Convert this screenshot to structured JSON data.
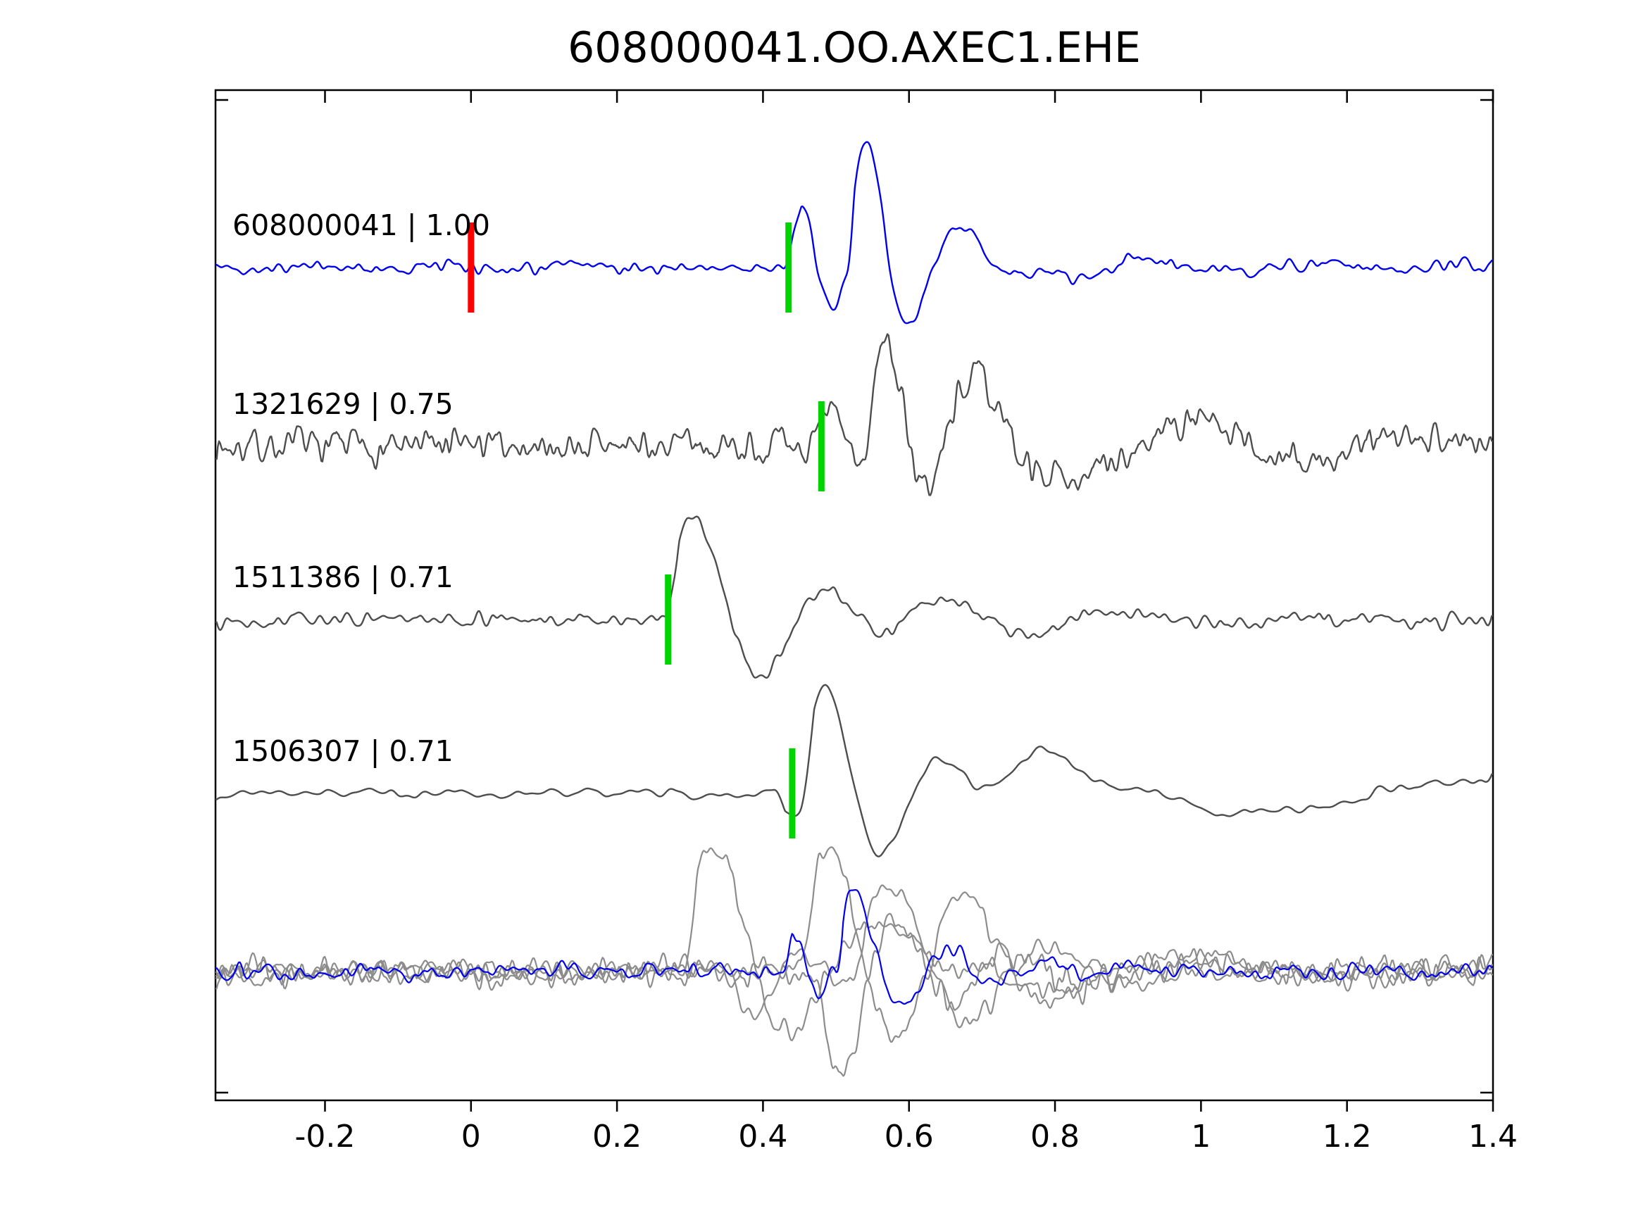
{
  "chart_data": {
    "type": "line",
    "subtype": "seismogram-cross-correlation-stack",
    "title": "608000041.OO.AXEC1.EHE",
    "xlabel": "",
    "ylabel": "",
    "xlim": [
      -0.35,
      1.4
    ],
    "x_ticks": [
      -0.2,
      0,
      0.2,
      0.4,
      0.6,
      0.8,
      1,
      1.2,
      1.4
    ],
    "x_tick_labels": [
      "-0.2",
      "0",
      "0.2",
      "0.4",
      "0.6",
      "0.8",
      "1",
      "1.2",
      "1.4"
    ],
    "grid": false,
    "legend": false,
    "colors": {
      "reference_trace": "#0000ee",
      "match_trace": "#4d4d4d",
      "overlay_gray": "#8c8c8c",
      "pick_red": "#ff0000",
      "pick_green": "#00d400",
      "axis": "#000000"
    },
    "traces": [
      {
        "id": "608000041",
        "correlation": "1.00",
        "label": "608000041 | 1.00",
        "color": "#0000ee",
        "picks": [
          {
            "x": 0.0,
            "color": "#ff0000"
          },
          {
            "x": 0.435,
            "color": "#00d400"
          }
        ],
        "wave": {
          "seed": 42,
          "noise_amp": 16,
          "smooth": 8,
          "events": [
            {
              "t0": 0.428,
              "amp": 115,
              "freq": 11,
              "decay": 0.09,
              "rise": 0.025
            },
            {
              "t0": 0.515,
              "amp": 200,
              "freq": 8,
              "decay": 0.09,
              "rise": 0.01
            },
            {
              "t0": 0.63,
              "amp": 38,
              "freq": 4.2,
              "decay": 0.22,
              "rise": 0.03
            }
          ]
        }
      },
      {
        "id": "1321629",
        "correlation": "0.75",
        "label": "1321629 | 0.75",
        "color": "#4d4d4d",
        "picks": [
          {
            "x": 0.48,
            "color": "#00d400"
          }
        ],
        "wave": {
          "seed": 7,
          "noise_amp": 32,
          "smooth": 3,
          "events": [
            {
              "t0": 0.47,
              "amp": 70,
              "freq": 11,
              "decay": 0.07,
              "rise": 0.02
            },
            {
              "t0": 0.535,
              "amp": 200,
              "freq": 7.5,
              "decay": 0.1,
              "rise": 0.02
            },
            {
              "t0": 0.6,
              "amp": 80,
              "freq": 3.2,
              "decay": 0.45,
              "rise": 0.05
            }
          ]
        }
      },
      {
        "id": "1511386",
        "correlation": "0.71",
        "label": "1511386 | 0.71",
        "color": "#4d4d4d",
        "picks": [
          {
            "x": 0.27,
            "color": "#00d400"
          }
        ],
        "wave": {
          "seed": 13,
          "noise_amp": 15,
          "smooth": 8,
          "events": [
            {
              "t0": 0.265,
              "amp": 200,
              "freq": 5.5,
              "decay": 0.14,
              "rise": 0.02
            },
            {
              "t0": 0.55,
              "amp": 30,
              "freq": 3.5,
              "decay": 0.3,
              "rise": 0.05
            }
          ]
        }
      },
      {
        "id": "1506307",
        "correlation": "0.71",
        "label": "1506307 | 0.71",
        "color": "#4d4d4d",
        "picks": [
          {
            "x": 0.44,
            "color": "#00d400"
          }
        ],
        "wave": {
          "seed": 99,
          "noise_amp": 10,
          "smooth": 20,
          "events": [
            {
              "t0": 0.415,
              "amp": -55,
              "freq": 9,
              "decay": 0.05,
              "rise": 0.015
            },
            {
              "t0": 0.45,
              "amp": 190,
              "freq": 6.5,
              "decay": 0.14,
              "rise": 0.02
            },
            {
              "t0": 0.62,
              "amp": 55,
              "freq": 1.6,
              "decay": 0.7,
              "rise": 0.1
            }
          ]
        }
      }
    ],
    "overlay": {
      "description": "all traces superimposed",
      "traces": [
        {
          "color": "#8c8c8c",
          "wave": {
            "seed": 21,
            "noise_amp": 26,
            "smooth": 5,
            "events": [
              {
                "t0": 0.29,
                "amp": 260,
                "freq": 5,
                "decay": 0.13,
                "rise": 0.02
              },
              {
                "t0": 0.5,
                "amp": 60,
                "freq": 2.5,
                "decay": 0.4,
                "rise": 0.05
              }
            ]
          }
        },
        {
          "color": "#8c8c8c",
          "wave": {
            "seed": 22,
            "noise_amp": 26,
            "smooth": 5,
            "events": [
              {
                "t0": 0.45,
                "amp": 240,
                "freq": 5.5,
                "decay": 0.14,
                "rise": 0.02
              },
              {
                "t0": 0.6,
                "amp": 70,
                "freq": 3,
                "decay": 0.35,
                "rise": 0.05
              }
            ]
          }
        },
        {
          "color": "#8c8c8c",
          "wave": {
            "seed": 23,
            "noise_amp": 28,
            "smooth": 4,
            "events": [
              {
                "t0": 0.47,
                "amp": -200,
                "freq": 6.5,
                "decay": 0.12,
                "rise": 0.02
              }
            ]
          }
        },
        {
          "color": "#8c8c8c",
          "wave": {
            "seed": 24,
            "noise_amp": 24,
            "smooth": 6,
            "events": [
              {
                "t0": 0.35,
                "amp": -90,
                "freq": 7,
                "decay": 0.1,
                "rise": 0.02
              },
              {
                "t0": 0.52,
                "amp": 170,
                "freq": 4.5,
                "decay": 0.18,
                "rise": 0.02
              }
            ]
          }
        },
        {
          "color": "#0000ee",
          "wave": {
            "seed": 25,
            "noise_amp": 16,
            "smooth": 8,
            "events": [
              {
                "t0": 0.425,
                "amp": 70,
                "freq": 14,
                "decay": 0.055,
                "rise": 0.015
              },
              {
                "t0": 0.5,
                "amp": 150,
                "freq": 8,
                "decay": 0.1,
                "rise": 0.01
              }
            ]
          }
        }
      ]
    }
  }
}
